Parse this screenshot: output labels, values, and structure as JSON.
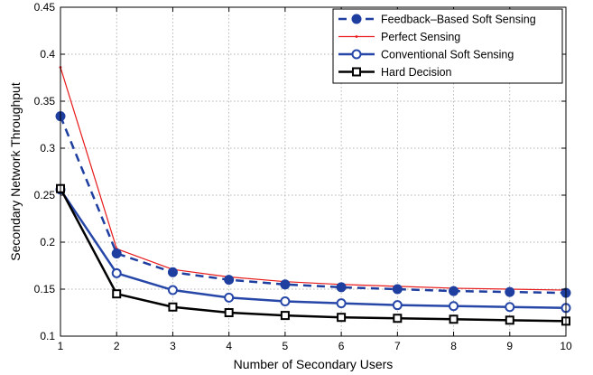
{
  "chart_data": {
    "type": "line",
    "xlabel": "Number of Secondary Users",
    "ylabel": "Secondary Network Throughput",
    "xlim": [
      1,
      10
    ],
    "ylim": [
      0.1,
      0.45
    ],
    "x_ticks": [
      "1",
      "2",
      "3",
      "4",
      "5",
      "6",
      "7",
      "8",
      "9",
      "10"
    ],
    "y_ticks": [
      "0.1",
      "0.15",
      "0.2",
      "0.25",
      "0.3",
      "0.35",
      "0.4",
      "0.45"
    ],
    "grid": true,
    "legend_position": "top-right",
    "x": [
      1,
      2,
      3,
      4,
      5,
      6,
      7,
      8,
      9,
      10
    ],
    "series": [
      {
        "name": "Feedback–Based Soft Sensing",
        "values": [
          0.334,
          0.188,
          0.168,
          0.16,
          0.155,
          0.152,
          0.15,
          0.148,
          0.147,
          0.146
        ],
        "color": "#1f3fa0",
        "line_style": "dashed",
        "marker": "filled-circle"
      },
      {
        "name": "Perfect Sensing",
        "values": [
          0.386,
          0.193,
          0.171,
          0.163,
          0.158,
          0.155,
          0.153,
          0.151,
          0.15,
          0.149
        ],
        "color": "#e8191a",
        "line_style": "solid",
        "marker": "dot"
      },
      {
        "name": "Conventional Soft Sensing",
        "values": [
          0.256,
          0.167,
          0.149,
          0.141,
          0.137,
          0.135,
          0.133,
          0.132,
          0.131,
          0.13
        ],
        "color": "#2747a8",
        "line_style": "solid",
        "marker": "open-circle"
      },
      {
        "name": "Hard Decision",
        "values": [
          0.257,
          0.145,
          0.131,
          0.125,
          0.122,
          0.12,
          0.119,
          0.118,
          0.117,
          0.116
        ],
        "color": "#000000",
        "line_style": "solid",
        "marker": "open-square"
      }
    ]
  }
}
